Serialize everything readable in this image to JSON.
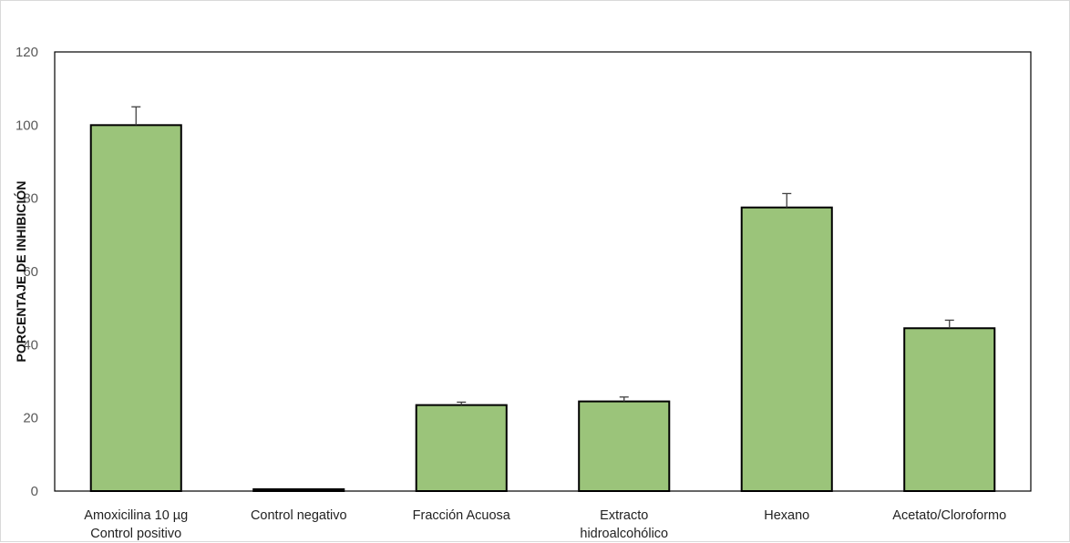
{
  "chart_data": {
    "type": "bar",
    "title": "",
    "xlabel": "",
    "ylabel": "PORCENTAJE DE INHIBICIÓN",
    "ylim": [
      0,
      120
    ],
    "yticks": [
      0,
      20,
      40,
      60,
      80,
      100,
      120
    ],
    "grid": false,
    "categories": [
      [
        "Amoxicilina  10 µg",
        "Control positivo"
      ],
      [
        "Control  negativo"
      ],
      [
        "Fracción  Acuosa"
      ],
      [
        "Extracto",
        "hidroalcohólico"
      ],
      [
        "Hexano"
      ],
      [
        "Acetato/Cloroformo"
      ]
    ],
    "values": [
      100,
      0.5,
      23.5,
      24.5,
      77.5,
      44.5
    ],
    "errors": [
      5,
      0,
      0.8,
      1.2,
      3.8,
      2.2
    ],
    "bar_color": "#9bc47a",
    "bar_edge_color": "#000000"
  }
}
